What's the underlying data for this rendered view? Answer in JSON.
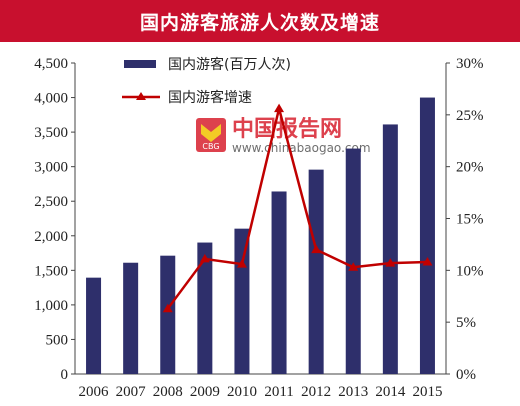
{
  "title": "国内游客旅游人次数及增速",
  "watermark": {
    "name": "中国报告网",
    "url": "www.chinabaogao.com",
    "logo_text": "CBG"
  },
  "colors": {
    "title_bg": "#c8102e",
    "bar": "#2e2f6b",
    "line": "#c00000",
    "watermark_red": "#d8202e"
  },
  "chart_data": {
    "type": "bar",
    "categories": [
      "2006",
      "2007",
      "2008",
      "2009",
      "2010",
      "2011",
      "2012",
      "2013",
      "2014",
      "2015"
    ],
    "series": [
      {
        "name": "国内游客(百万人次)",
        "type": "bar",
        "axis": "left",
        "values": [
          1394,
          1610,
          1712,
          1902,
          2103,
          2641,
          2957,
          3262,
          3611,
          4000
        ]
      },
      {
        "name": "国内游客增速",
        "type": "line",
        "axis": "right",
        "values": [
          null,
          null,
          6.3,
          11.1,
          10.6,
          25.6,
          12.0,
          10.3,
          10.7,
          10.8
        ]
      }
    ],
    "ylim": [
      0,
      4500
    ],
    "yticks": [
      "0",
      "500",
      "1,000",
      "1,500",
      "2,000",
      "2,500",
      "3,000",
      "3,500",
      "4,000",
      "4,500"
    ],
    "y2lim": [
      0,
      30
    ],
    "y2ticks": [
      "0%",
      "5%",
      "10%",
      "15%",
      "20%",
      "25%",
      "30%"
    ],
    "legend_position": "top-left"
  }
}
